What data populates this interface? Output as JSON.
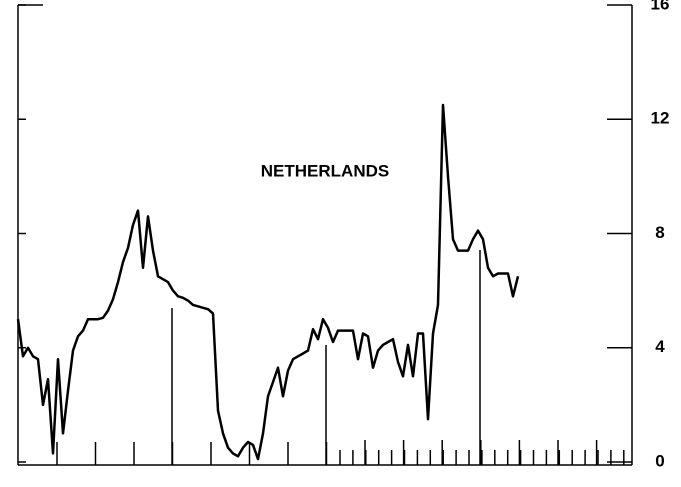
{
  "chart_data": {
    "type": "line",
    "title": "NETHERLANDS",
    "values": [
      5.0,
      3.7,
      4.0,
      3.7,
      3.6,
      2.0,
      2.9,
      0.3,
      3.6,
      1.0,
      2.5,
      3.9,
      4.4,
      4.6,
      5.0,
      5.0,
      5.0,
      5.05,
      5.3,
      5.7,
      6.3,
      7.0,
      7.5,
      8.3,
      8.8,
      6.8,
      8.6,
      7.4,
      6.5,
      6.4,
      6.3,
      6.0,
      5.8,
      5.75,
      5.65,
      5.5,
      5.45,
      5.4,
      5.35,
      5.2,
      1.8,
      1.0,
      0.5,
      0.3,
      0.2,
      0.5,
      0.7,
      0.6,
      0.1,
      1.0,
      2.3,
      2.8,
      3.3,
      2.3,
      3.2,
      3.6,
      3.7,
      3.8,
      3.9,
      4.65,
      4.3,
      5.0,
      4.7,
      4.2,
      4.6,
      4.6,
      4.6,
      4.6,
      3.6,
      4.5,
      4.4,
      3.3,
      3.9,
      4.1,
      4.2,
      4.3,
      3.5,
      3.0,
      4.1,
      3.0,
      4.5,
      4.5,
      1.5,
      4.5,
      5.5,
      12.5,
      10.0,
      7.8,
      7.4,
      7.4,
      7.4,
      7.8,
      8.1,
      7.8,
      6.8,
      6.5,
      6.6,
      6.6,
      6.6,
      5.8,
      6.5
    ],
    "color": "#000000",
    "ylim": [
      0,
      16
    ],
    "yticks": [
      0,
      4,
      8,
      12,
      16
    ],
    "y_axis_side": "right",
    "grid": false
  }
}
